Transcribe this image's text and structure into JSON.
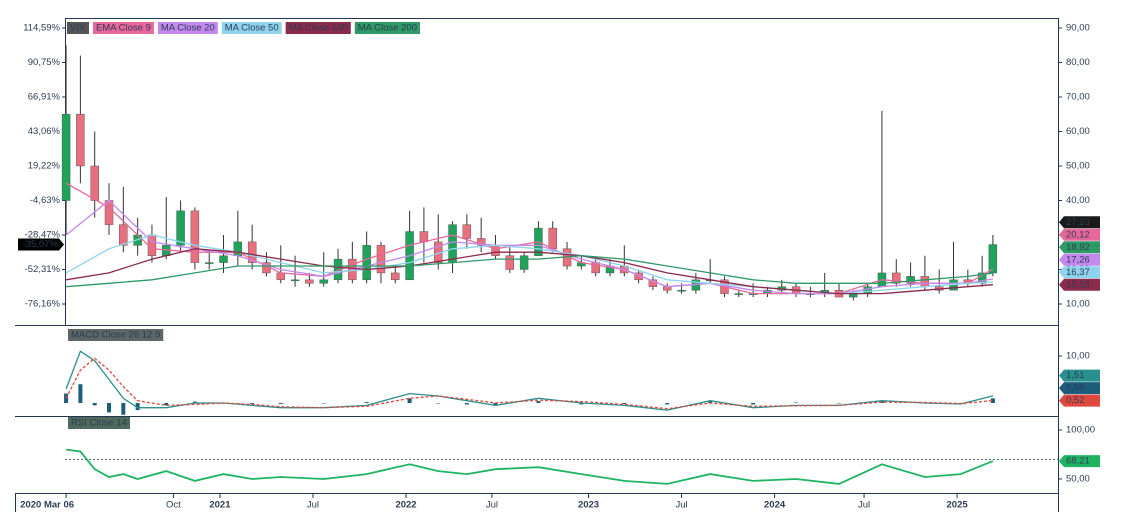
{
  "chart_data": [
    {
      "type": "candlestick",
      "xlim": [
        -0.3,
        277.2
      ],
      "ylim": [
        3.91,
        92.9
      ],
      "yticks": [
        {
          "value": 10,
          "label": "10,00"
        },
        {
          "value": 20,
          "label": "20,00"
        },
        {
          "value": 30,
          "label": "30,00"
        },
        {
          "value": 40,
          "label": "40,00"
        },
        {
          "value": 50,
          "label": "50,00"
        },
        {
          "value": 60,
          "label": "60,00"
        },
        {
          "value": 70,
          "label": "70,00"
        },
        {
          "value": 80,
          "label": "80,00"
        },
        {
          "value": 90,
          "label": "90,00"
        }
      ],
      "y2lim": [
        -90.67,
        121.5
      ],
      "y2ticks": [
        {
          "value": -76.16,
          "label": "-76,16%"
        },
        {
          "value": -52.31,
          "label": "-52,31%"
        },
        {
          "value": -28.47,
          "label": "-28,47%"
        },
        {
          "value": -4.63,
          "label": "-4,63%"
        },
        {
          "value": 19.22,
          "label": "19,22%"
        },
        {
          "value": 43.06,
          "label": "43,06%"
        },
        {
          "value": 66.91,
          "label": "66,91%"
        },
        {
          "value": 90.75,
          "label": "90,75%"
        },
        {
          "value": 114.59,
          "label": "114,59%"
        }
      ],
      "y2_label": {
        "value": -35.07,
        "label": "-35,07%"
      },
      "series": [
        {
          "name": "VIX",
          "type": "candlestick",
          "color": "#1a1a1a",
          "up_color": "#1fa35b",
          "down_color": "#e8707e",
          "last_label": "27,23",
          "x": [
            0,
            4,
            8,
            12,
            16,
            20,
            24,
            28,
            32,
            36,
            40,
            44,
            48,
            52,
            56,
            60,
            64,
            68,
            72,
            76,
            80,
            84,
            88,
            92,
            96,
            100,
            104,
            108,
            112,
            116,
            120,
            124,
            128,
            132,
            136,
            140,
            144,
            148,
            152,
            156,
            160,
            164,
            168,
            172,
            176,
            180,
            184,
            188,
            192,
            196,
            200,
            204,
            208,
            212,
            216,
            220,
            224,
            228,
            232,
            236,
            240,
            244,
            248,
            252,
            256,
            259
          ],
          "open": [
            40,
            65,
            50,
            40,
            33,
            27,
            30,
            24,
            27,
            37,
            22,
            22,
            24,
            28,
            22,
            19,
            17,
            17,
            16,
            17,
            23,
            17,
            27,
            19,
            17,
            31,
            28,
            22,
            33,
            29,
            27,
            24,
            20,
            24,
            32,
            26,
            21,
            22,
            19,
            21,
            19,
            17,
            15,
            14,
            14,
            17,
            17,
            13,
            13,
            13,
            14,
            15,
            13,
            13,
            14,
            12,
            13,
            15,
            19,
            16,
            18,
            15,
            14,
            17,
            16,
            19
          ],
          "high": [
            85,
            82,
            60,
            45,
            44,
            35,
            33,
            41,
            40,
            38,
            25,
            30,
            37,
            33,
            25,
            27,
            24,
            19,
            25,
            26,
            28,
            31,
            28,
            21,
            37,
            38,
            36,
            34,
            36,
            35,
            30,
            27,
            25,
            34,
            34,
            28,
            24,
            23,
            23,
            27,
            20,
            18,
            16,
            16,
            19,
            23,
            18,
            14,
            16,
            15,
            17,
            16,
            15,
            19,
            16,
            14,
            16,
            66,
            23,
            22,
            24,
            20,
            28,
            20,
            24,
            30
          ],
          "low": [
            30,
            45,
            35,
            30,
            25,
            24,
            22,
            23,
            25,
            20,
            20,
            19,
            21,
            20,
            18,
            16,
            15,
            15,
            15,
            16,
            16,
            16,
            16,
            16,
            17,
            22,
            20,
            19,
            26,
            25,
            23,
            19,
            19,
            24,
            25,
            20,
            20,
            18,
            18,
            18,
            16,
            14,
            13,
            13,
            13,
            16,
            12,
            12,
            12,
            12,
            13,
            12,
            12,
            12,
            12,
            11,
            12,
            15,
            15,
            15,
            14,
            13,
            14,
            15,
            15,
            18
          ],
          "close": [
            65,
            50,
            40,
            33,
            27,
            30,
            24,
            27,
            37,
            22,
            22,
            24,
            28,
            22,
            19,
            17,
            17,
            16,
            17,
            23,
            17,
            27,
            19,
            17,
            31,
            28,
            22,
            33,
            29,
            27,
            24,
            20,
            24,
            32,
            26,
            21,
            22,
            19,
            21,
            19,
            17,
            15,
            14,
            14,
            17,
            17,
            13,
            13,
            13,
            14,
            15,
            13,
            13,
            14,
            12,
            13,
            15,
            19,
            16,
            18,
            15,
            14,
            17,
            16,
            19,
            27.23
          ]
        },
        {
          "name": "EMA Close 9",
          "type": "line",
          "color": "#e8679a",
          "last_label": "20,12",
          "x": [
            0,
            12,
            24,
            36,
            48,
            60,
            72,
            84,
            96,
            108,
            120,
            132,
            144,
            156,
            168,
            180,
            192,
            204,
            216,
            228,
            240,
            252,
            259
          ],
          "values": [
            45,
            38,
            26,
            25,
            25,
            19,
            18,
            23,
            27,
            30,
            26,
            28,
            22,
            20,
            15,
            16,
            13,
            13,
            13,
            17,
            16,
            16,
            20.12
          ]
        },
        {
          "name": "MA Close 20",
          "type": "line",
          "color": "#c488ee",
          "last_label": "17,26",
          "x": [
            0,
            12,
            24,
            36,
            48,
            60,
            72,
            84,
            96,
            108,
            120,
            132,
            144,
            156,
            168,
            180,
            192,
            204,
            216,
            228,
            240,
            252,
            259
          ],
          "values": [
            30,
            40,
            28,
            26,
            24,
            20,
            18,
            21,
            24,
            28,
            27,
            27,
            23,
            20,
            15,
            16,
            14,
            13,
            13,
            15,
            16,
            16,
            17.26
          ]
        },
        {
          "name": "MA Close 50",
          "type": "line",
          "color": "#8fd3ee",
          "last_label": "16,37",
          "x": [
            0,
            12,
            24,
            36,
            48,
            60,
            72,
            84,
            96,
            108,
            120,
            132,
            144,
            156,
            168,
            180,
            192,
            204,
            216,
            228,
            240,
            252,
            259
          ],
          "values": [
            19,
            26,
            30,
            27,
            25,
            22,
            19,
            20,
            22,
            26,
            27,
            26,
            24,
            21,
            17,
            16,
            15,
            14,
            13,
            14,
            15,
            16,
            16.37
          ]
        },
        {
          "name": "MA Close 100",
          "type": "line",
          "color": "#8b2a4a",
          "last_label": "15,58",
          "x": [
            0,
            12,
            24,
            36,
            48,
            60,
            72,
            84,
            96,
            108,
            120,
            132,
            144,
            156,
            168,
            180,
            192,
            204,
            216,
            228,
            240,
            252,
            259
          ],
          "values": [
            17,
            19,
            23,
            26,
            25,
            23,
            21,
            20,
            21,
            23,
            25,
            25,
            24,
            22,
            19,
            17,
            15,
            14,
            13,
            13,
            14,
            15,
            15.58
          ]
        },
        {
          "name": "MA Close 200",
          "type": "line",
          "color": "#2e9a66",
          "last_label": "18,92",
          "x": [
            0,
            12,
            24,
            36,
            48,
            60,
            72,
            84,
            96,
            108,
            120,
            132,
            144,
            156,
            168,
            180,
            192,
            204,
            216,
            228,
            240,
            252,
            259
          ],
          "values": [
            15,
            16,
            17,
            19,
            21,
            21,
            21,
            21,
            21,
            22,
            23,
            23,
            24,
            23,
            21,
            19,
            17,
            16,
            16,
            16,
            17,
            18,
            18.92
          ]
        }
      ]
    },
    {
      "type": "macd",
      "title": "MACD Close 26 12 9",
      "title_color": "#5d6666",
      "xlim": [
        -0.3,
        277.2
      ],
      "ylim": [
        -2.55,
        15.53
      ],
      "yticks": [
        {
          "value": 10,
          "label": "10,00"
        }
      ],
      "x": [
        0,
        4,
        8,
        12,
        16,
        20,
        28,
        36,
        44,
        52,
        60,
        72,
        84,
        96,
        104,
        112,
        120,
        132,
        144,
        156,
        168,
        180,
        192,
        204,
        216,
        228,
        240,
        250,
        259
      ],
      "series": [
        {
          "kind": "histogram",
          "color": "#1d5c7a",
          "last_label": "0,99",
          "values": [
            2,
            4,
            -0.5,
            -2,
            -2.5,
            -1.5,
            -0.5,
            0.3,
            0,
            -0.2,
            -0.2,
            0,
            0.2,
            1,
            0,
            -0.3,
            -0.5,
            0.4,
            -0.3,
            -0.2,
            -0.3,
            0.5,
            -0.3,
            0.1,
            0,
            0.3,
            -0.1,
            -0.1,
            0.99
          ]
        },
        {
          "kind": "line",
          "color": "#2a8f8f",
          "last_label": "1,51",
          "values": [
            3,
            11,
            9,
            5,
            1,
            -1,
            -1,
            0,
            0,
            -0.5,
            -1,
            -1,
            -0.5,
            2,
            1.5,
            0.5,
            -0.5,
            1,
            0,
            -0.5,
            -1.5,
            0.5,
            -1,
            -0.5,
            -0.5,
            0.5,
            0,
            -0.2,
            1.51
          ]
        },
        {
          "kind": "dashed",
          "color": "#e0483e",
          "last_label": "0,52",
          "values": [
            1,
            7,
            9.5,
            7,
            3.5,
            0.5,
            -0.5,
            -0.3,
            0,
            -0.3,
            -0.8,
            -1,
            -0.7,
            1,
            1.5,
            0.8,
            0,
            0.6,
            0.3,
            -0.3,
            -1.2,
            0,
            -0.7,
            -0.6,
            -0.5,
            0.2,
            0.1,
            -0.1,
            0.52
          ]
        }
      ]
    },
    {
      "type": "line",
      "title": "RSI Close 14",
      "title_color": "#4d6a5c",
      "xlim": [
        -0.3,
        277.2
      ],
      "ylim": [
        36.7,
        112.2
      ],
      "yticks": [
        {
          "value": 50,
          "label": "50,00"
        },
        {
          "value": 100,
          "label": "100,00"
        }
      ],
      "levels": [
        70
      ],
      "xticks": [
        {
          "value": 0,
          "label": "2020 Mar 06"
        },
        {
          "value": 30,
          "label": "Oct"
        },
        {
          "value": 43,
          "label": "2021"
        },
        {
          "value": 69,
          "label": "Jul"
        },
        {
          "value": 95,
          "label": "2022"
        },
        {
          "value": 119,
          "label": "Jul"
        },
        {
          "value": 146,
          "label": "2023"
        },
        {
          "value": 172,
          "label": "Jul"
        },
        {
          "value": 198,
          "label": "2024"
        },
        {
          "value": 223,
          "label": "Jul"
        },
        {
          "value": 249,
          "label": "2025"
        }
      ],
      "x": [
        0,
        4,
        8,
        12,
        16,
        20,
        28,
        36,
        44,
        52,
        60,
        72,
        84,
        96,
        104,
        112,
        120,
        132,
        144,
        156,
        168,
        180,
        192,
        204,
        216,
        228,
        240,
        250,
        259
      ],
      "series": [
        {
          "kind": "line",
          "color": "#1fb462",
          "last_label": "68,21",
          "values": [
            80,
            78,
            60,
            52,
            55,
            50,
            58,
            48,
            55,
            50,
            52,
            50,
            55,
            65,
            58,
            55,
            60,
            62,
            55,
            48,
            45,
            55,
            48,
            50,
            45,
            65,
            52,
            55,
            68.21
          ]
        }
      ]
    }
  ]
}
